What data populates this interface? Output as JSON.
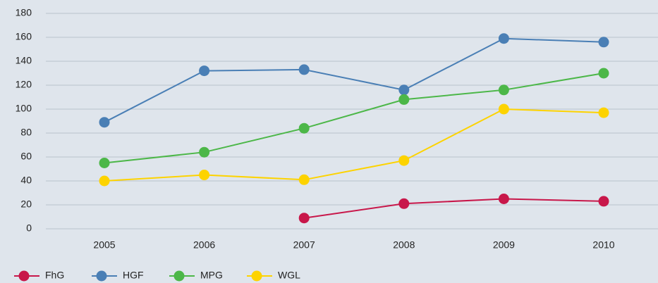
{
  "chart_data": {
    "type": "line",
    "x": [
      2005,
      2006,
      2007,
      2008,
      2009,
      2010
    ],
    "xlim": [
      2005,
      2010
    ],
    "xticks": [
      2005,
      2006,
      2007,
      2008,
      2009,
      2010
    ],
    "ylim": [
      0,
      180
    ],
    "yticks": [
      0,
      20,
      40,
      60,
      80,
      100,
      120,
      140,
      160,
      180
    ],
    "grid": true,
    "legend": "bottom",
    "series": [
      {
        "name": "FhG",
        "color": "#c8174a",
        "values": [
          null,
          null,
          9,
          21,
          25,
          23
        ]
      },
      {
        "name": "HGF",
        "color": "#4a7fb5",
        "values": [
          89,
          132,
          133,
          116,
          159,
          156
        ]
      },
      {
        "name": "MPG",
        "color": "#4cb748",
        "values": [
          55,
          64,
          84,
          108,
          116,
          130
        ]
      },
      {
        "name": "WGL",
        "color": "#fdd300",
        "values": [
          40,
          45,
          41,
          57,
          100,
          97
        ]
      }
    ]
  }
}
